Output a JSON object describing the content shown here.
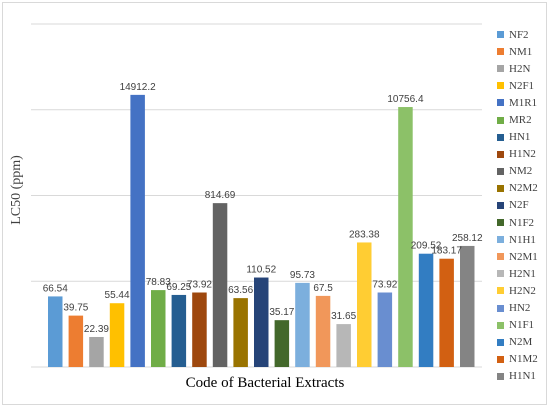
{
  "chart_data": {
    "type": "bar",
    "xlabel": "Code of Bacterial Extracts",
    "ylabel": "LC50 (ppm)",
    "y_scale": "log",
    "grid": true,
    "legend_position": "right",
    "series": [
      {
        "name": "NF2",
        "value": 66.54,
        "label": "66.54",
        "color": "#5b9bd5"
      },
      {
        "name": "NM1",
        "value": 39.75,
        "label": "39.75",
        "color": "#ed7d31"
      },
      {
        "name": "H2N",
        "value": 22.39,
        "label": "22.39",
        "color": "#a5a5a5"
      },
      {
        "name": "N2F1",
        "value": 55.44,
        "label": "55.44",
        "color": "#ffc000"
      },
      {
        "name": "M1R1",
        "value": 14912.2,
        "label": "14912.2",
        "color": "#4472c4"
      },
      {
        "name": "MR2",
        "value": 78.83,
        "label": "78.83",
        "color": "#70ad47"
      },
      {
        "name": "HN1",
        "value": 69.25,
        "label": "69.25",
        "color": "#255e91"
      },
      {
        "name": "H1N2",
        "value": 73.92,
        "label": "73.92",
        "color": "#9e480e"
      },
      {
        "name": "NM2",
        "value": 814.69,
        "label": "814.69",
        "color": "#636363"
      },
      {
        "name": "N2M2",
        "value": 63.56,
        "label": "63.56",
        "color": "#997300"
      },
      {
        "name": "N2F",
        "value": 110.52,
        "label": "110.52",
        "color": "#264478"
      },
      {
        "name": "N1F2",
        "value": 35.17,
        "label": "35.17",
        "color": "#43682b"
      },
      {
        "name": "N1H1",
        "value": 95.73,
        "label": "95.73",
        "color": "#7cafdd"
      },
      {
        "name": "N2M1",
        "value": 67.5,
        "label": "67.5",
        "color": "#f1975a"
      },
      {
        "name": "H2N1",
        "value": 31.65,
        "label": "31.65",
        "color": "#b7b7b7"
      },
      {
        "name": "H2N2",
        "value": 283.38,
        "label": "283.38",
        "color": "#ffcd33"
      },
      {
        "name": "HN2",
        "value": 73.92,
        "label": "73.92",
        "color": "#698ed0"
      },
      {
        "name": "N1F1",
        "value": 10756.4,
        "label": "10756.4",
        "color": "#8cc168"
      },
      {
        "name": "N2M",
        "value": 209.52,
        "label": "209.52",
        "color": "#327dc2"
      },
      {
        "name": "N1M2",
        "value": 183.17,
        "label": "183.17",
        "color": "#d26012"
      },
      {
        "name": "H1N1",
        "value": 258.12,
        "label": "258.12",
        "color": "#848484"
      }
    ]
  }
}
